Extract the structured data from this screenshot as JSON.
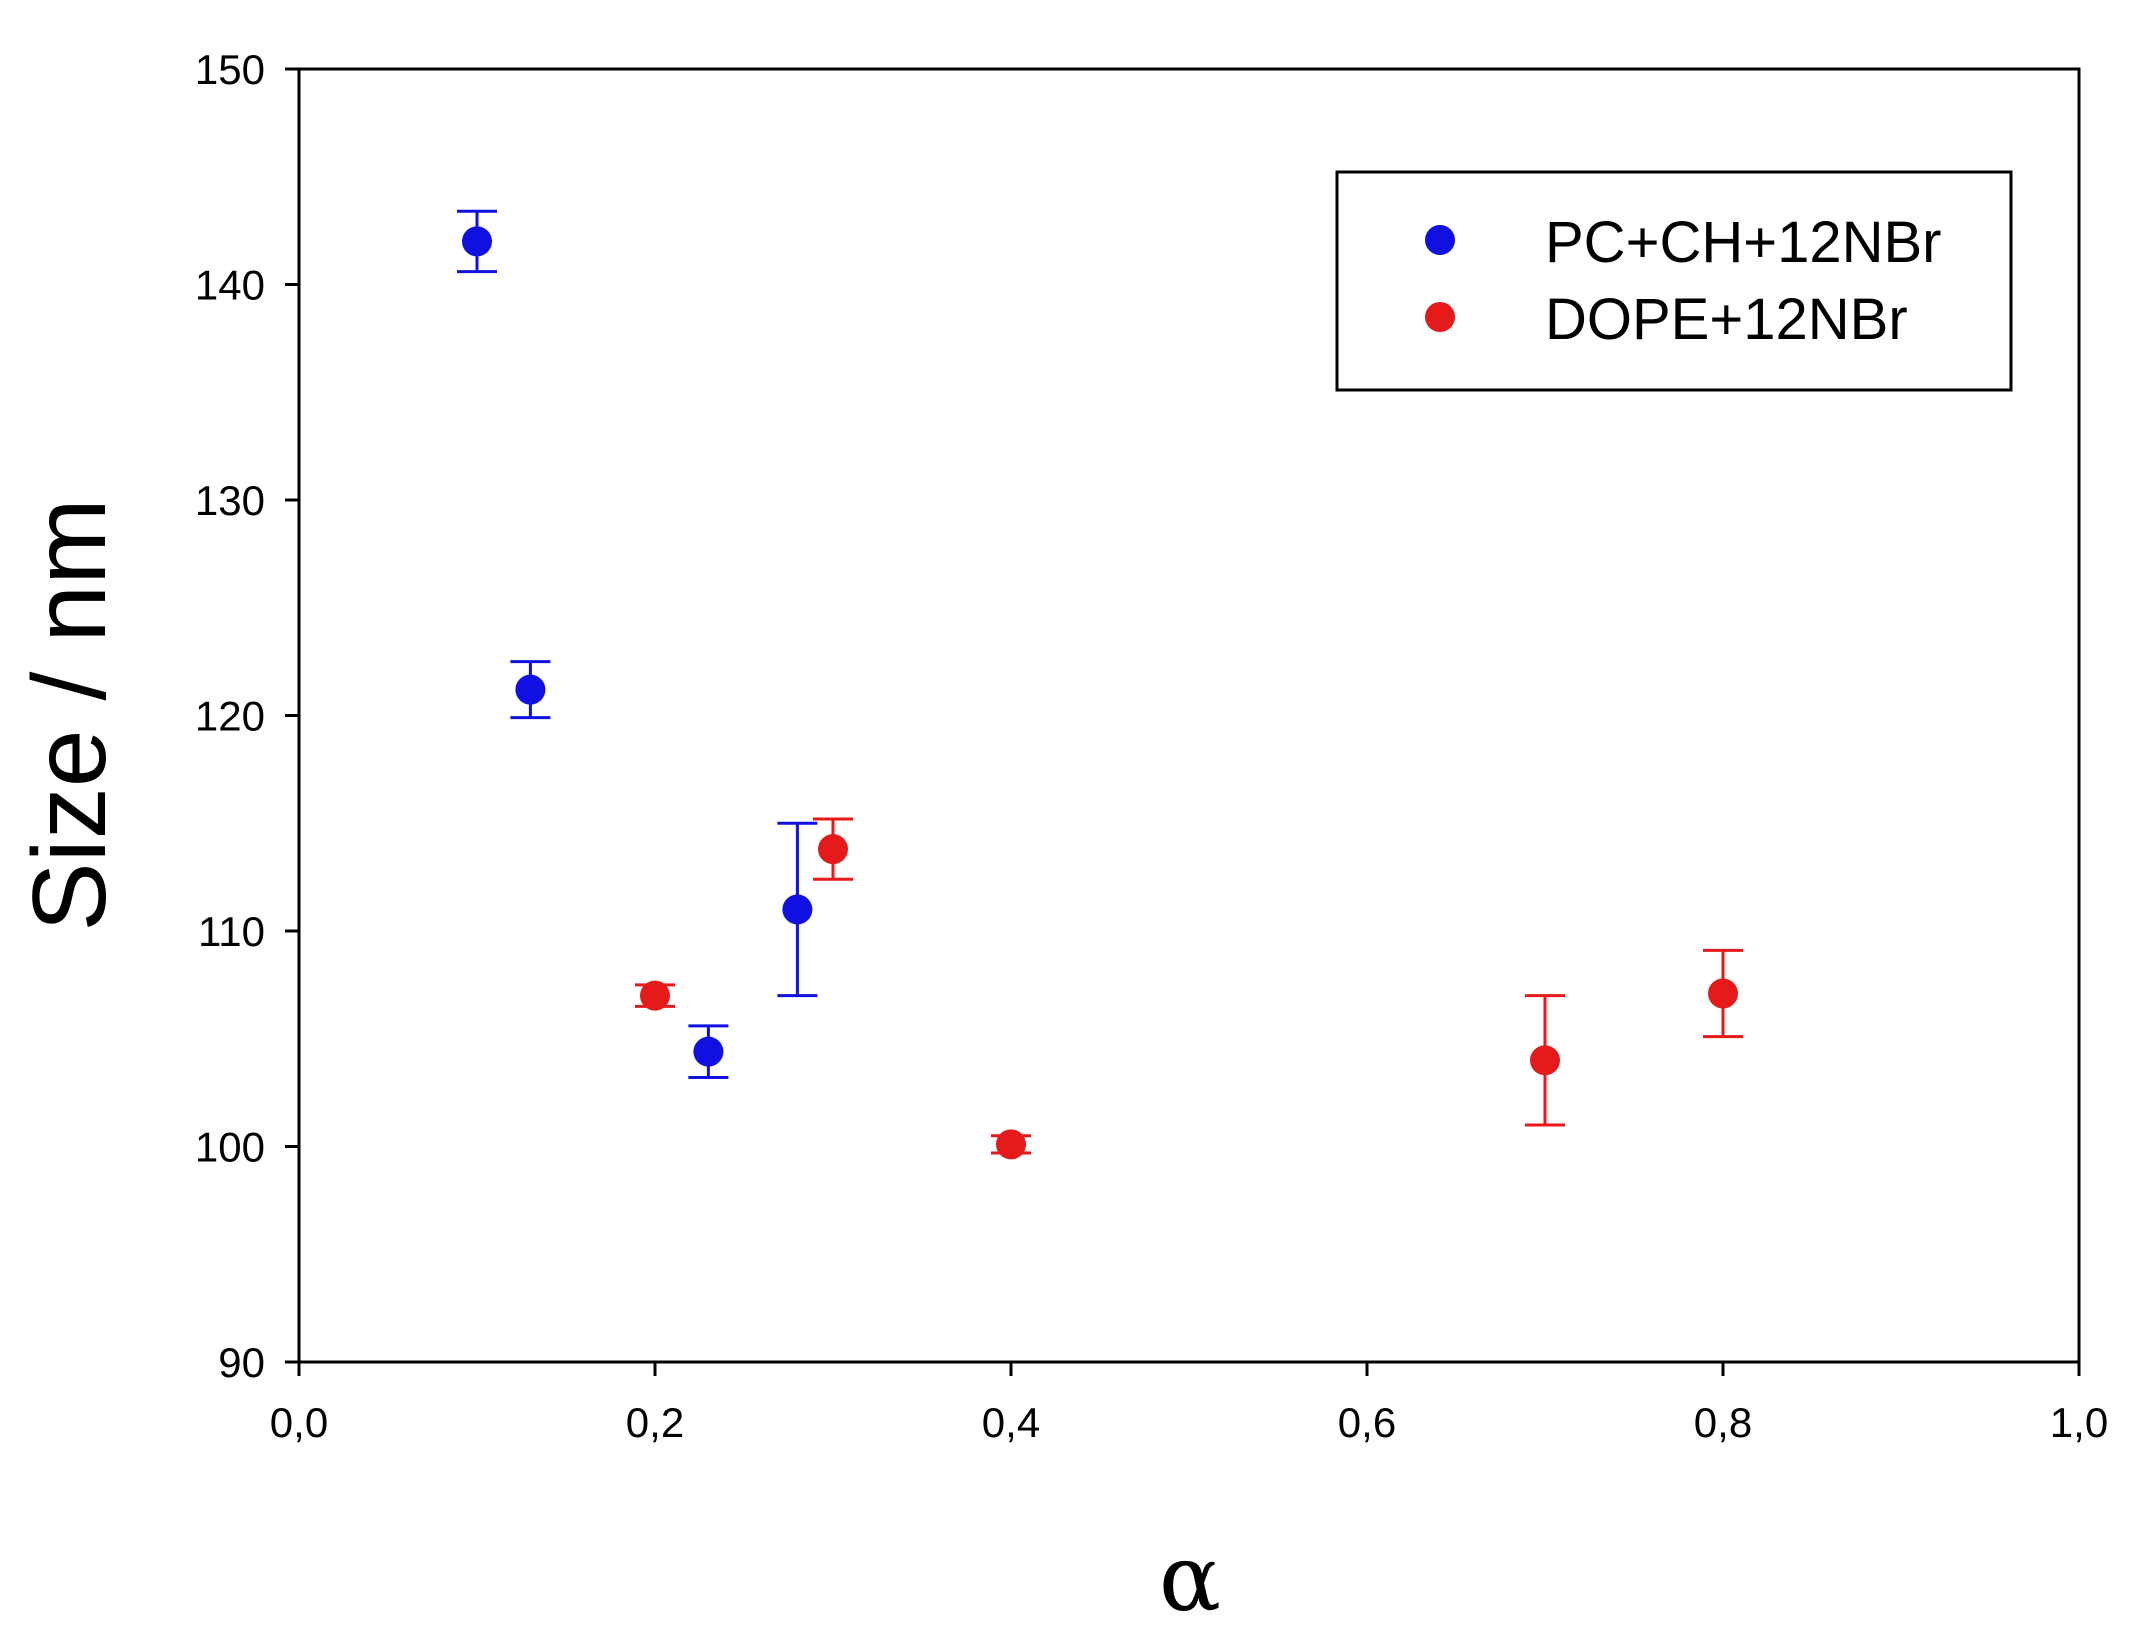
{
  "chart_data": {
    "type": "scatter",
    "title": "",
    "xlabel": "α",
    "ylabel": "Size / nm",
    "xlim": [
      0.0,
      1.0
    ],
    "ylim": [
      90,
      150
    ],
    "x_ticks": [
      0.0,
      0.2,
      0.4,
      0.6,
      0.8,
      1.0
    ],
    "x_tick_labels": [
      "0,0",
      "0,2",
      "0,4",
      "0,6",
      "0,8",
      "1,0"
    ],
    "y_ticks": [
      90,
      100,
      110,
      120,
      130,
      140,
      150
    ],
    "y_tick_labels": [
      "90",
      "100",
      "110",
      "120",
      "130",
      "140",
      "150"
    ],
    "grid": false,
    "legend_position": "top-right",
    "series": [
      {
        "name": "PC+CH+12NBr",
        "color": "#1010e0",
        "points": [
          {
            "x": 0.1,
            "y": 142.0,
            "err": 1.4
          },
          {
            "x": 0.13,
            "y": 121.2,
            "err": 1.3
          },
          {
            "x": 0.23,
            "y": 104.4,
            "err": 1.2
          },
          {
            "x": 0.28,
            "y": 111.0,
            "err": 4.0
          }
        ]
      },
      {
        "name": "DOPE+12NBr",
        "color": "#e51a1a",
        "points": [
          {
            "x": 0.2,
            "y": 107.0,
            "err": 0.5
          },
          {
            "x": 0.3,
            "y": 113.8,
            "err": 1.4
          },
          {
            "x": 0.4,
            "y": 100.1,
            "err": 0.4
          },
          {
            "x": 0.7,
            "y": 104.0,
            "err": 3.0
          },
          {
            "x": 0.8,
            "y": 107.1,
            "err": 2.0
          }
        ]
      }
    ]
  }
}
